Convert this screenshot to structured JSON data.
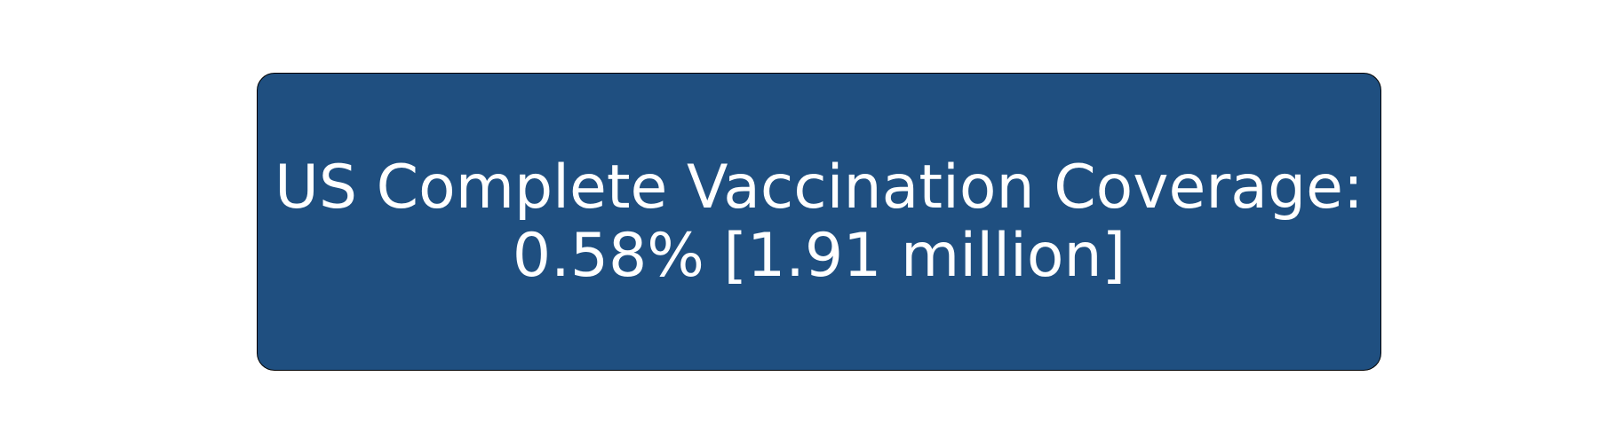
{
  "card": {
    "title_line": "US Complete Vaccination Coverage:",
    "value_line": "0.58% [1.91 million]",
    "background_color": "#1f4f80",
    "text_color": "#ffffff"
  }
}
